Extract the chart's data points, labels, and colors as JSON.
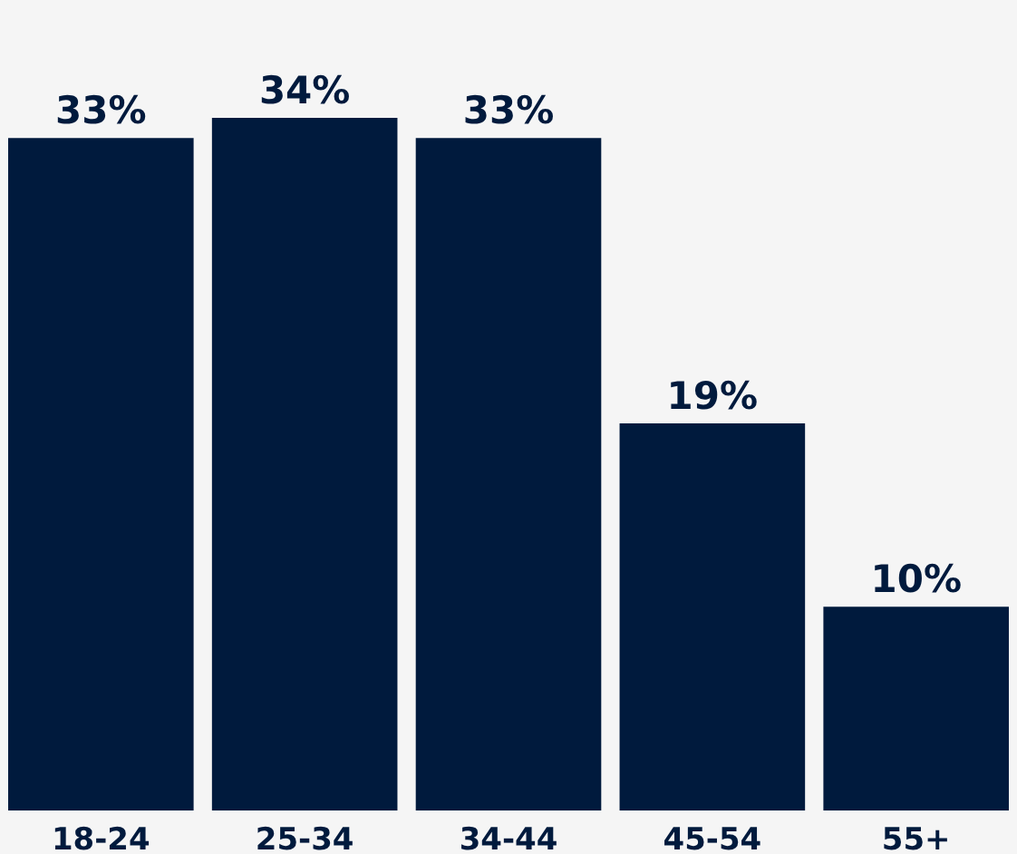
{
  "chart_data": {
    "type": "bar",
    "categories": [
      "18-24",
      "25-34",
      "34-44",
      "45-54",
      "55+"
    ],
    "values": [
      33,
      34,
      33,
      19,
      10
    ],
    "color": "#001a3d",
    "data_labels": true,
    "value_labels": [
      "33%",
      "34%",
      "33%",
      "19%",
      "10%"
    ]
  }
}
